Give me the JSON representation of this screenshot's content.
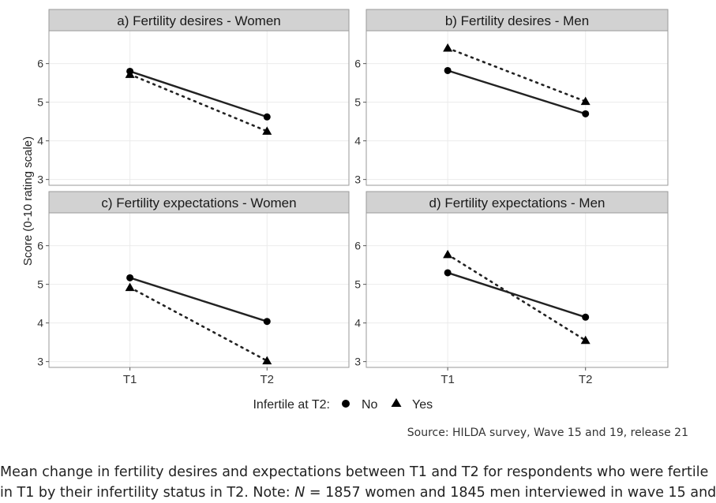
{
  "colors": {
    "panel_border": "#9a9a9a",
    "strip_fill": "#d2d2d2",
    "grid": "#ebebeb",
    "series": "#222222",
    "axis_text": "#333333"
  },
  "chart_data": {
    "type": "line",
    "ylabel": "Score (0-10 rating scale)",
    "categories": [
      "T1",
      "T2"
    ],
    "ylim": [
      2.85,
      6.85
    ],
    "y_ticks": [
      3,
      4,
      5,
      6
    ],
    "legend": {
      "title": "Infertile at T2:",
      "placement": "bottom",
      "items": [
        {
          "name": "No",
          "marker": "circle",
          "linestyle": "solid"
        },
        {
          "name": "Yes",
          "marker": "triangle",
          "linestyle": "dotted"
        }
      ]
    },
    "panels": [
      {
        "title": "a) Fertility desires - Women",
        "series": [
          {
            "name": "No",
            "values": [
              5.8,
              4.62
            ]
          },
          {
            "name": "Yes",
            "values": [
              5.72,
              4.25
            ]
          }
        ]
      },
      {
        "title": "b) Fertility desires - Men",
        "series": [
          {
            "name": "No",
            "values": [
              5.82,
              4.7
            ]
          },
          {
            "name": "Yes",
            "values": [
              6.4,
              5.02
            ]
          }
        ]
      },
      {
        "title": "c) Fertility expectations - Women",
        "series": [
          {
            "name": "No",
            "values": [
              5.17,
              4.04
            ]
          },
          {
            "name": "Yes",
            "values": [
              4.92,
              3.02
            ]
          }
        ]
      },
      {
        "title": "d) Fertility expectations - Men",
        "series": [
          {
            "name": "No",
            "values": [
              5.3,
              4.15
            ]
          },
          {
            "name": "Yes",
            "values": [
              5.77,
              3.55
            ]
          }
        ]
      }
    ]
  },
  "source": "Source: HILDA survey, Wave 15 and 19, release 21",
  "caption": {
    "line1": "Mean change in fertility desires and expectations between T1 and T2 for respondents who were fertile",
    "line2_before": "in T1 by their infertility status in T2. Note: ",
    "line2_n": "N",
    "line2_after": " = 1857 women and 1845 men interviewed in wave 15 and"
  }
}
